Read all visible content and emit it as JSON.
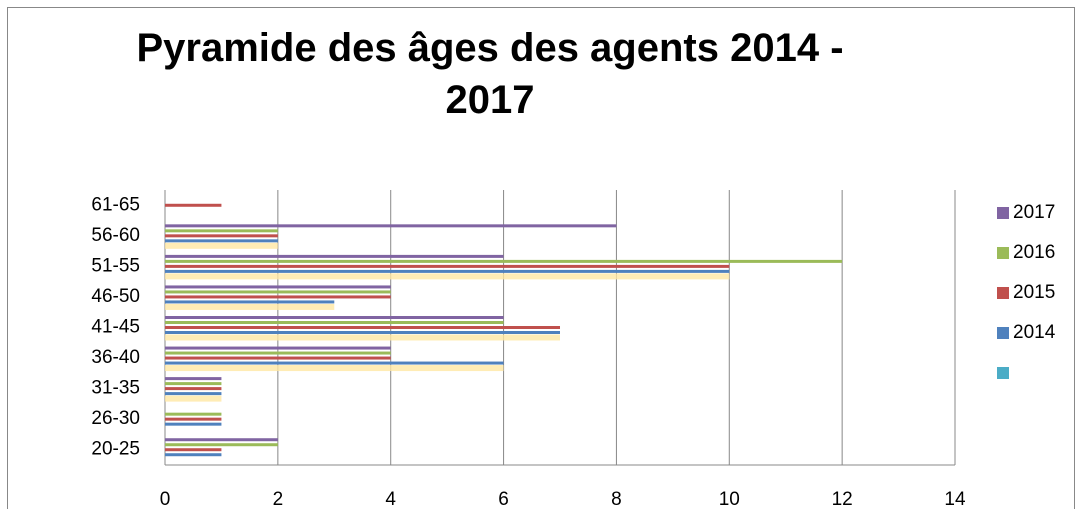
{
  "chart_data": {
    "type": "barh",
    "title": "Pyramide des âges  des agents 2014 - 2017",
    "categories": [
      "20-25",
      "26-30",
      "31-35",
      "36-40",
      "41-45",
      "46-50",
      "51-55",
      "56-60",
      "61-65"
    ],
    "series": [
      {
        "name": null,
        "color": "#4bacc6",
        "bar_color": "#ffe7a3",
        "values": [
          null,
          0,
          1,
          6,
          7,
          3,
          10,
          2,
          null
        ]
      },
      {
        "name": "2014",
        "color": "#4f81bd",
        "values": [
          1,
          1,
          1,
          6,
          7,
          3,
          10,
          2,
          null
        ]
      },
      {
        "name": "2015",
        "color": "#c0504d",
        "values": [
          1,
          1,
          1,
          4,
          7,
          4,
          10,
          2,
          1
        ]
      },
      {
        "name": "2016",
        "color": "#9bbb59",
        "values": [
          2,
          1,
          1,
          4,
          6,
          4,
          12,
          2,
          null
        ]
      },
      {
        "name": "2017",
        "color": "#8064a2",
        "values": [
          2,
          0,
          1,
          4,
          6,
          4,
          6,
          8,
          null
        ]
      }
    ],
    "xlim": [
      0,
      14
    ],
    "xticks": [
      0,
      2,
      4,
      6,
      8,
      10,
      12,
      14
    ],
    "grid": true,
    "legend": "right"
  }
}
